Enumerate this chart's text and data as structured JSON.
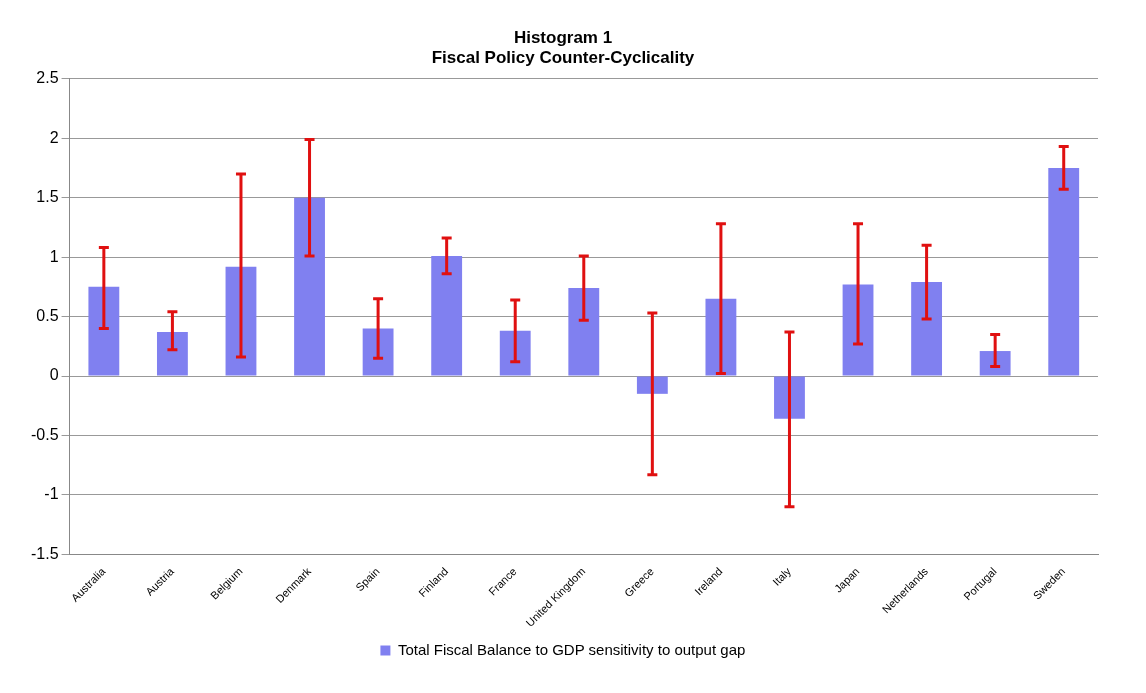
{
  "chart_data": {
    "type": "bar",
    "title": [
      "Histogram 1",
      "Fiscal Policy Counter-Cyclicality"
    ],
    "categories": [
      "Australia",
      "Austria",
      "Belgium",
      "Denmark",
      "Spain",
      "Finland",
      "France",
      "United Kingdom",
      "Greece",
      "Ireland",
      "Italy",
      "Japan",
      "Netherlands",
      "Portugal",
      "Sweden"
    ],
    "series": [
      {
        "name": "Total Fiscal Balance to GDP sensitivity to output gap",
        "color": "#8080f0",
        "values": [
          0.75,
          0.37,
          0.92,
          1.5,
          0.4,
          1.01,
          0.38,
          0.74,
          -0.15,
          0.65,
          -0.36,
          0.77,
          0.79,
          0.21,
          1.75
        ],
        "errors": [
          [
            0.4,
            1.08
          ],
          [
            0.22,
            0.54
          ],
          [
            0.16,
            1.7
          ],
          [
            1.01,
            1.99
          ],
          [
            0.15,
            0.65
          ],
          [
            0.86,
            1.16
          ],
          [
            0.12,
            0.64
          ],
          [
            0.47,
            1.01
          ],
          [
            -0.83,
            0.53
          ],
          [
            0.02,
            1.28
          ],
          [
            -1.1,
            0.37
          ],
          [
            0.27,
            1.28
          ],
          [
            0.48,
            1.1
          ],
          [
            0.08,
            0.35
          ],
          [
            1.57,
            1.93
          ]
        ]
      }
    ],
    "ylim": [
      -1.5,
      2.5
    ],
    "yticks": [
      -1.5,
      -1,
      -0.5,
      0,
      0.5,
      1,
      1.5,
      2,
      2.5
    ],
    "grid": "y",
    "legend": "bottom"
  }
}
